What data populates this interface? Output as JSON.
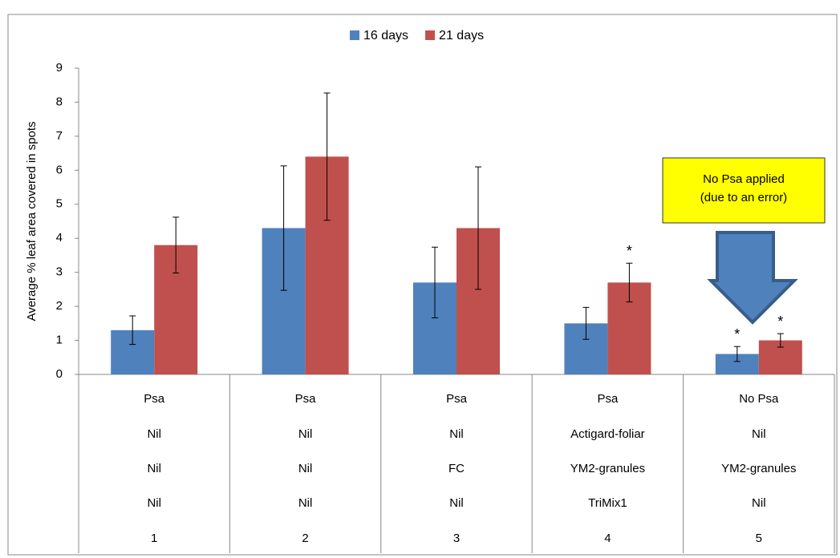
{
  "chart_data": {
    "type": "bar",
    "y_label": "Average % leaf area covered in spots",
    "categories": [
      "1",
      "2",
      "3",
      "4",
      "5"
    ],
    "category_rows": [
      [
        "Psa",
        "Psa",
        "Psa",
        "Psa",
        "No Psa"
      ],
      [
        "Nil",
        "Nil",
        "Nil",
        "Actigard-foliar",
        "Nil"
      ],
      [
        "Nil",
        "Nil",
        "FC",
        "YM2-granules",
        "YM2-granules"
      ],
      [
        "Nil",
        "Nil",
        "Nil",
        "TriMix1",
        "Nil"
      ]
    ],
    "series": [
      {
        "name": "16 days",
        "color": "#4f81bd",
        "values": [
          1.3,
          4.3,
          2.7,
          1.5,
          0.6
        ],
        "errors": [
          0.42,
          1.83,
          1.04,
          0.47,
          0.22
        ],
        "markers": [
          null,
          null,
          null,
          null,
          "*"
        ]
      },
      {
        "name": "21 days",
        "color": "#c0504d",
        "values": [
          3.8,
          6.4,
          4.3,
          2.7,
          1.0
        ],
        "errors": [
          0.82,
          1.87,
          1.8,
          0.57,
          0.2
        ],
        "markers": [
          null,
          null,
          null,
          "*",
          "*"
        ]
      }
    ],
    "ylim": [
      0,
      9
    ],
    "yticks": [
      0,
      1,
      2,
      3,
      4,
      5,
      6,
      7,
      8,
      9
    ],
    "legend": "top",
    "annotation": [
      "No Psa applied",
      "(due to an error)"
    ]
  }
}
